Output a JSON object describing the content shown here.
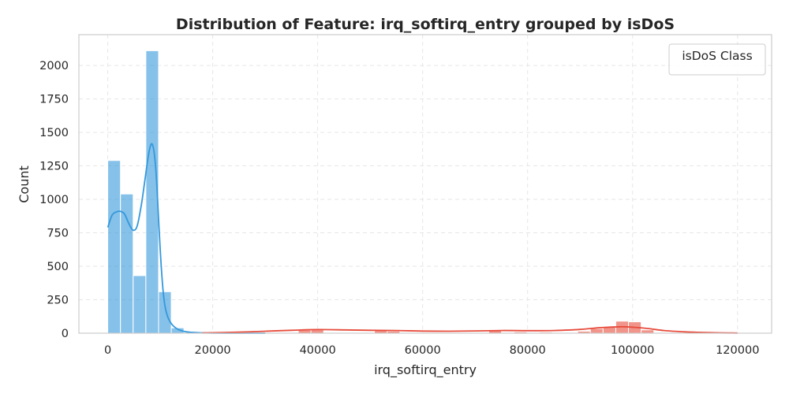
{
  "chart_data": {
    "type": "histogram",
    "title": "Distribution of Feature: irq_softirq_entry grouped by isDoS",
    "xlabel": "irq_softirq_entry",
    "ylabel": "Count",
    "xlim": [
      -5500,
      126500
    ],
    "ylim": [
      0,
      2230
    ],
    "x_ticks": [
      0,
      20000,
      40000,
      60000,
      80000,
      100000,
      120000
    ],
    "x_tick_labels": [
      "0",
      "20000",
      "40000",
      "60000",
      "80000",
      "100000",
      "120000"
    ],
    "y_ticks": [
      0,
      250,
      500,
      750,
      1000,
      1250,
      1500,
      1750,
      2000
    ],
    "y_tick_labels": [
      "0",
      "250",
      "500",
      "750",
      "1000",
      "1250",
      "1500",
      "1750",
      "2000"
    ],
    "grid": true,
    "legend": {
      "title": "isDoS Class",
      "position": "top-right",
      "entries": []
    },
    "bin_width": 2420,
    "series": [
      {
        "color": "#3498db",
        "bars": [
          {
            "x": 0,
            "count": 1290
          },
          {
            "x": 2420,
            "count": 1040
          },
          {
            "x": 4840,
            "count": 430
          },
          {
            "x": 7260,
            "count": 2110
          },
          {
            "x": 9680,
            "count": 310
          },
          {
            "x": 12100,
            "count": 40
          },
          {
            "x": 14520,
            "count": 5
          }
        ],
        "kde_x": [
          0,
          800,
          1600,
          2400,
          3200,
          4000,
          4800,
          5600,
          6400,
          7000,
          7600,
          8000,
          8400,
          8800,
          9200,
          9600,
          10000,
          10400,
          10800,
          11200,
          11800,
          12600,
          13600,
          15000,
          17000,
          20000,
          25000,
          30000
        ],
        "kde_y": [
          790,
          880,
          905,
          910,
          890,
          820,
          770,
          800,
          960,
          1120,
          1290,
          1380,
          1415,
          1360,
          1200,
          920,
          620,
          380,
          230,
          150,
          90,
          50,
          25,
          10,
          4,
          1,
          0,
          0
        ]
      },
      {
        "color": "#e74c3c",
        "bars": [
          {
            "x": 36300,
            "count": 25
          },
          {
            "x": 38720,
            "count": 30
          },
          {
            "x": 50820,
            "count": 20
          },
          {
            "x": 53240,
            "count": 15
          },
          {
            "x": 72600,
            "count": 20
          },
          {
            "x": 77440,
            "count": 10
          },
          {
            "x": 82280,
            "count": 8
          },
          {
            "x": 89540,
            "count": 15
          },
          {
            "x": 91960,
            "count": 35
          },
          {
            "x": 94380,
            "count": 45
          },
          {
            "x": 96800,
            "count": 90
          },
          {
            "x": 99220,
            "count": 85
          },
          {
            "x": 101640,
            "count": 25
          }
        ],
        "kde_x": [
          18000,
          25000,
          30000,
          35000,
          40000,
          45000,
          50000,
          55000,
          60000,
          65000,
          70000,
          75000,
          80000,
          85000,
          90000,
          94000,
          98000,
          100000,
          103000,
          106000,
          110000,
          115000,
          120000
        ],
        "kde_y": [
          2,
          8,
          15,
          22,
          27,
          25,
          22,
          20,
          16,
          15,
          17,
          20,
          19,
          20,
          28,
          42,
          48,
          45,
          35,
          20,
          10,
          4,
          1
        ]
      }
    ]
  }
}
